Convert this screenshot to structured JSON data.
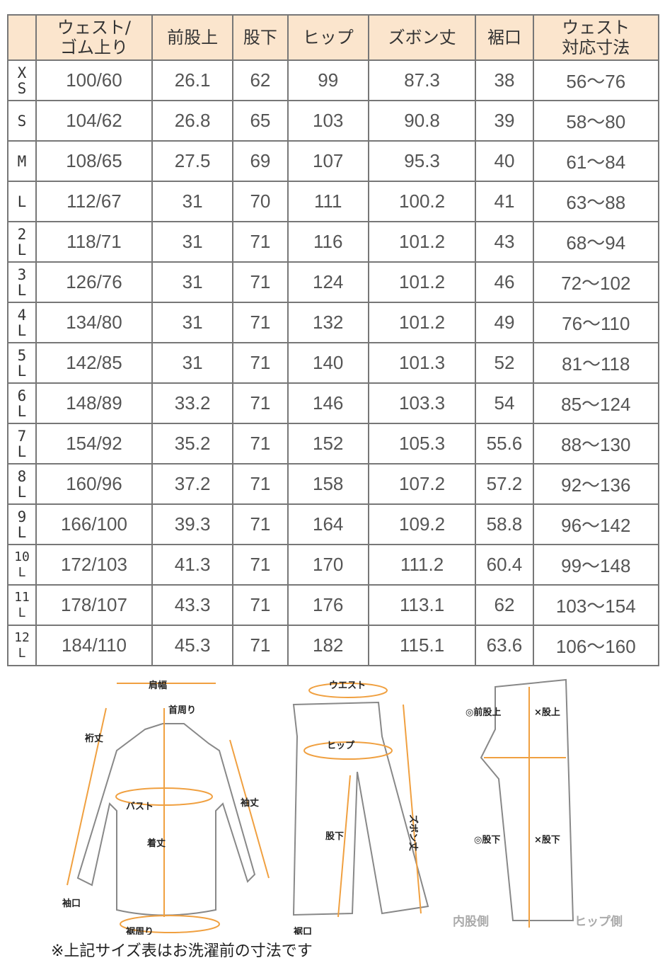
{
  "table": {
    "headers": [
      "",
      "ウェスト/\nゴム上り",
      "前股上",
      "股下",
      "ヒップ",
      "ズボン丈",
      "裾口",
      "ウェスト\n対応寸法"
    ],
    "rows": [
      [
        "XS",
        "100/60",
        "26.1",
        "62",
        "99",
        "87.3",
        "38",
        "56～76"
      ],
      [
        "S",
        "104/62",
        "26.8",
        "65",
        "103",
        "90.8",
        "39",
        "58～80"
      ],
      [
        "M",
        "108/65",
        "27.5",
        "69",
        "107",
        "95.3",
        "40",
        "61～84"
      ],
      [
        "L",
        "112/67",
        "31",
        "70",
        "111",
        "100.2",
        "41",
        "63～88"
      ],
      [
        "2L",
        "118/71",
        "31",
        "71",
        "116",
        "101.2",
        "43",
        "68～94"
      ],
      [
        "3L",
        "126/76",
        "31",
        "71",
        "124",
        "101.2",
        "46",
        "72～102"
      ],
      [
        "4L",
        "134/80",
        "31",
        "71",
        "132",
        "101.2",
        "49",
        "76～110"
      ],
      [
        "5L",
        "142/85",
        "31",
        "71",
        "140",
        "101.3",
        "52",
        "81～118"
      ],
      [
        "6L",
        "148/89",
        "33.2",
        "71",
        "146",
        "103.3",
        "54",
        "85～124"
      ],
      [
        "7L",
        "154/92",
        "35.2",
        "71",
        "152",
        "105.3",
        "55.6",
        "88～130"
      ],
      [
        "8L",
        "160/96",
        "37.2",
        "71",
        "158",
        "107.2",
        "57.2",
        "92～136"
      ],
      [
        "9L",
        "166/100",
        "39.3",
        "71",
        "164",
        "109.2",
        "58.8",
        "96～142"
      ],
      [
        "10L",
        "172/103",
        "41.3",
        "71",
        "170",
        "111.2",
        "60.4",
        "99～148"
      ],
      [
        "11L",
        "178/107",
        "43.3",
        "71",
        "176",
        "113.1",
        "62",
        "103～154"
      ],
      [
        "12L",
        "184/110",
        "45.3",
        "71",
        "182",
        "115.1",
        "63.6",
        "106～160"
      ]
    ]
  },
  "diagram": {
    "shirt": {
      "shoulder": "肩幅",
      "neck": "首周り",
      "yuki": "裄丈",
      "bust": "バスト",
      "sleeve": "袖丈",
      "length": "着丈",
      "cuff": "袖口",
      "hem": "裾周り"
    },
    "pants": {
      "waist": "ウエスト",
      "hip": "ヒップ",
      "inseam": "股下",
      "length": "ズボン丈",
      "hem": "裾口"
    },
    "side": {
      "front_rise": "◎前股上",
      "rise": "×股上",
      "inseam_ok": "◎股下",
      "inseam_ng": "×股下",
      "inner": "内股側",
      "hip": "ヒップ側"
    },
    "accent": "#f0a040"
  },
  "note": "※上記サイズ表はお洗濯前の寸法です"
}
